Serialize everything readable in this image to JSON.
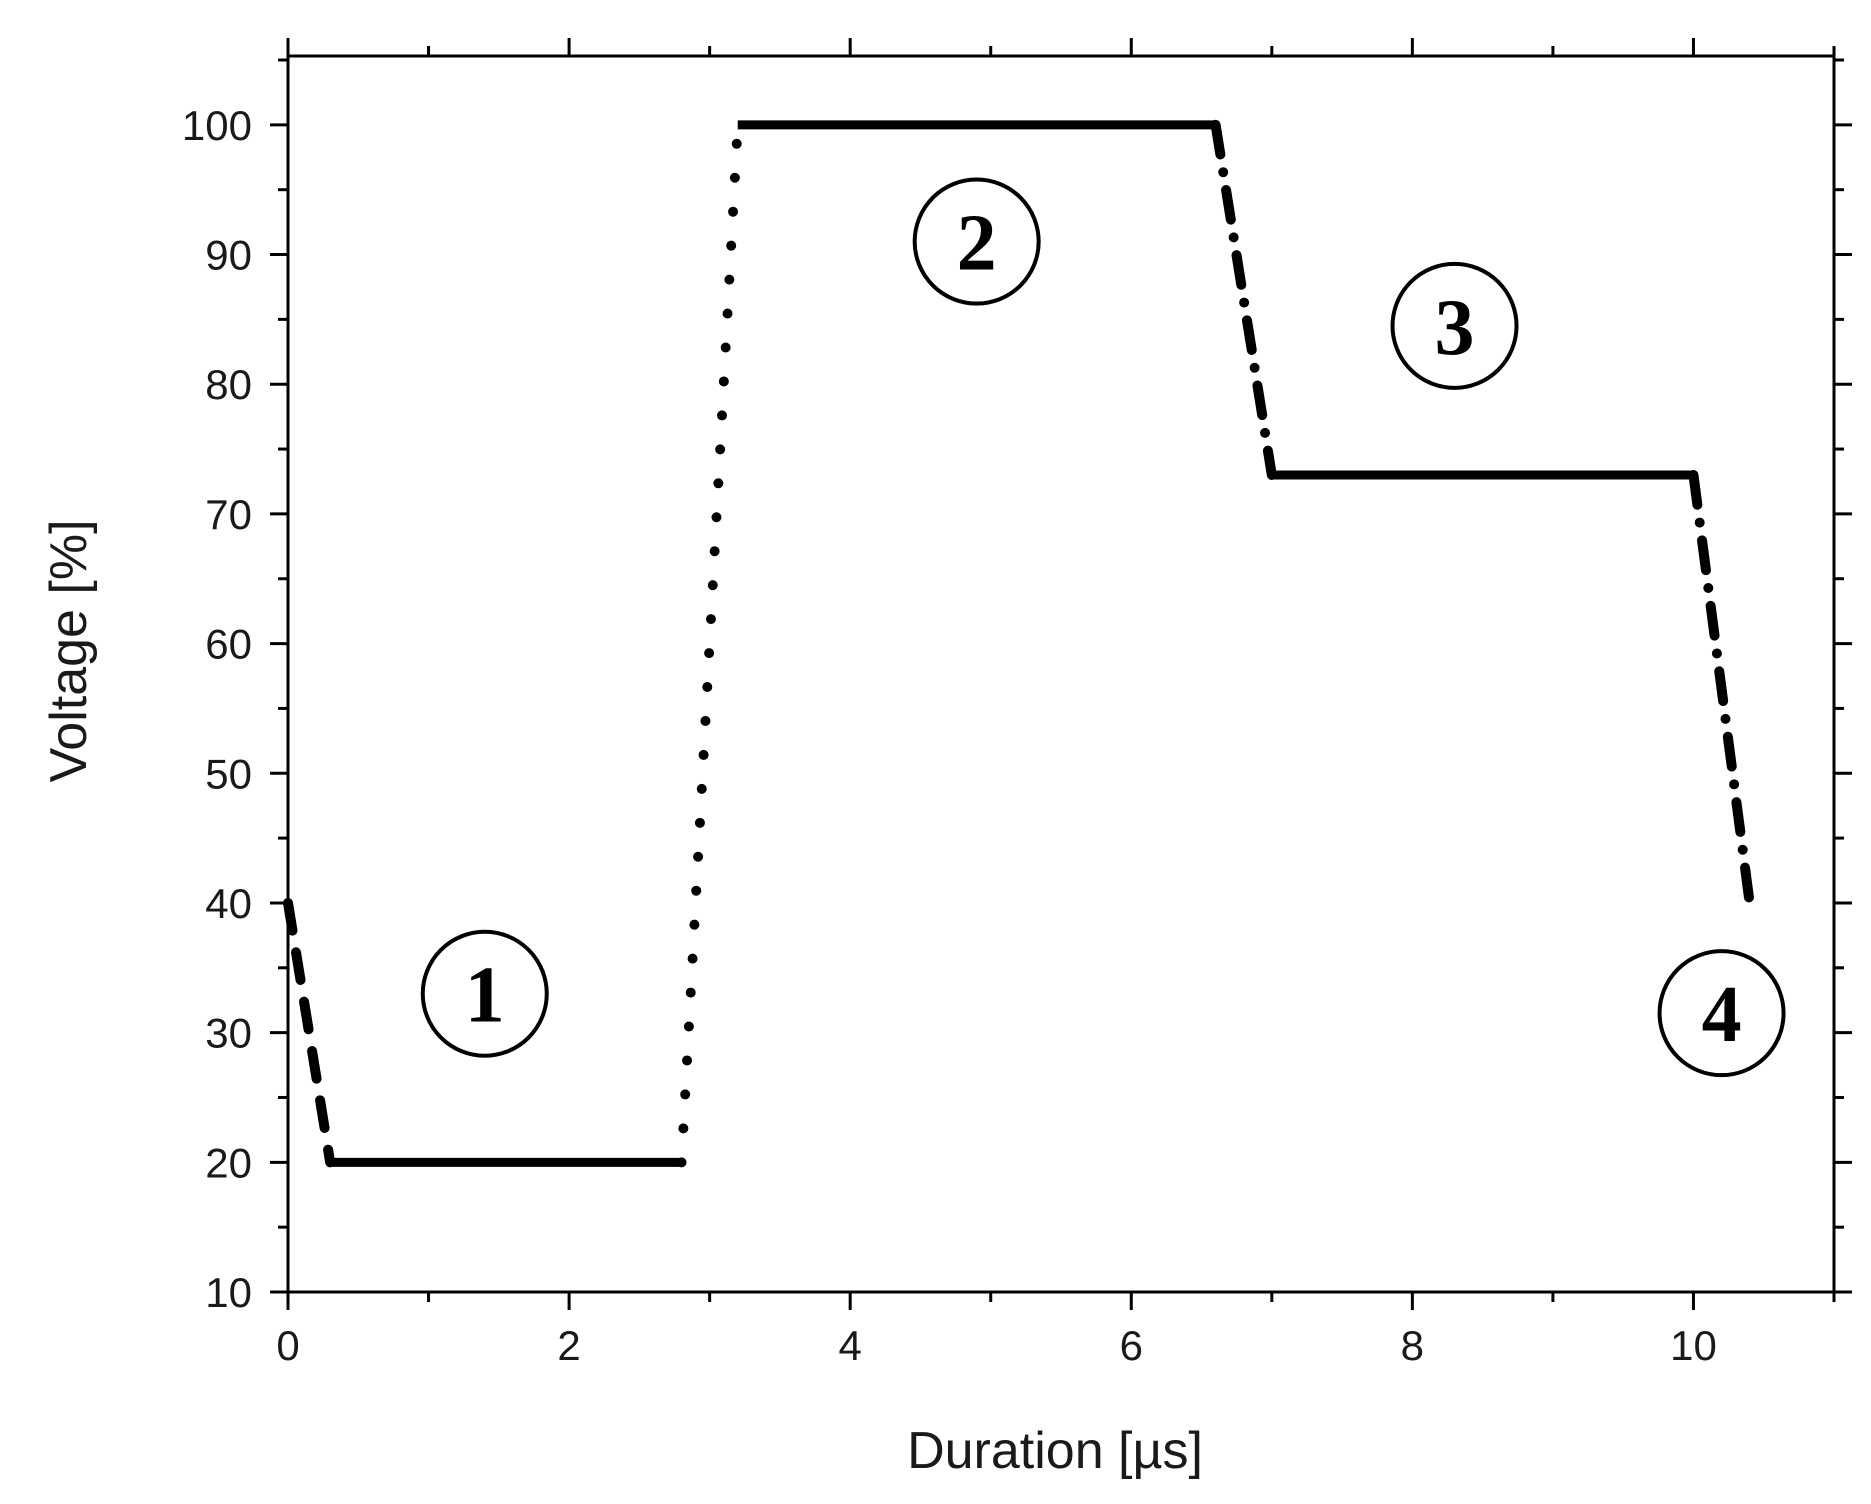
{
  "chart_data": {
    "type": "line",
    "title": "",
    "xlabel": "Duration [µs]",
    "ylabel": "Voltage [%]",
    "xlim": [
      0,
      11
    ],
    "ylim": [
      10,
      105
    ],
    "x_ticks": [
      0,
      2,
      4,
      6,
      8,
      10
    ],
    "y_ticks": [
      10,
      20,
      30,
      40,
      50,
      60,
      70,
      80,
      90,
      100
    ],
    "grid": false,
    "line_color": "#000000",
    "segments": [
      {
        "style": "dashed",
        "x": [
          0,
          0.3
        ],
        "y": [
          40,
          20
        ]
      },
      {
        "style": "solid",
        "x": [
          0.3,
          2.8
        ],
        "y": [
          20,
          20
        ]
      },
      {
        "style": "dotted",
        "x": [
          2.8,
          3.2
        ],
        "y": [
          20,
          100
        ]
      },
      {
        "style": "solid",
        "x": [
          3.2,
          6.6
        ],
        "y": [
          100,
          100
        ]
      },
      {
        "style": "dash-dot",
        "x": [
          6.6,
          7.0
        ],
        "y": [
          100,
          73
        ]
      },
      {
        "style": "solid",
        "x": [
          7.0,
          10.0
        ],
        "y": [
          73,
          73
        ]
      },
      {
        "style": "dash-dot",
        "x": [
          10.0,
          10.4
        ],
        "y": [
          73,
          40
        ]
      }
    ],
    "annotations": [
      {
        "text": "1",
        "x": 1.4,
        "y": 33
      },
      {
        "text": "2",
        "x": 4.9,
        "y": 91
      },
      {
        "text": "3",
        "x": 8.3,
        "y": 84.5
      },
      {
        "text": "4",
        "x": 10.2,
        "y": 31.5
      }
    ]
  }
}
